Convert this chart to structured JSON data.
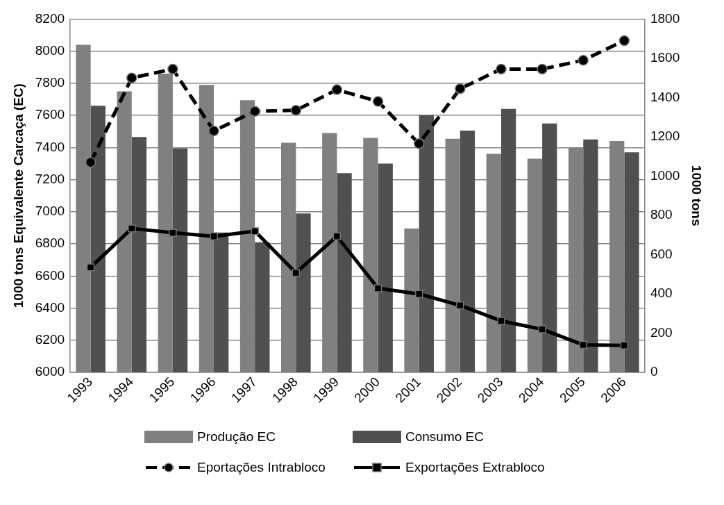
{
  "chart_data": {
    "type": "bar",
    "ylabel": "1000 tons Equivalente Carcaça (EC)",
    "y2label": "1000 tons",
    "categories": [
      "1993",
      "1994",
      "1995",
      "1996",
      "1997",
      "1998",
      "1999",
      "2000",
      "2001",
      "2002",
      "2003",
      "2004",
      "2005",
      "2006"
    ],
    "series": [
      {
        "name": "Produção EC",
        "color": "#808080",
        "values": [
          8040,
          7750,
          7860,
          7790,
          7695,
          7430,
          7490,
          7460,
          6895,
          7455,
          7360,
          7330,
          7400,
          7440
        ]
      },
      {
        "name": "Consumo EC",
        "color": "#505050",
        "values": [
          7660,
          7465,
          7395,
          6870,
          6810,
          6990,
          7240,
          7300,
          7600,
          7505,
          7640,
          7550,
          7450,
          7370
        ]
      },
      {
        "name": "Eportações Intrabloco",
        "type": "line",
        "axis": "y2",
        "color": "#000000",
        "marker": "circle",
        "line_style": "dashed",
        "values": [
          1070,
          1500,
          1545,
          1230,
          1330,
          1335,
          1440,
          1380,
          1165,
          1445,
          1545,
          1545,
          1590,
          1690
        ]
      },
      {
        "name": "Exportações Extrabloco",
        "type": "line",
        "axis": "y2",
        "color": "#000000",
        "marker": "square",
        "line_style": "solid",
        "values": [
          535,
          733,
          711,
          693,
          719,
          507,
          693,
          428,
          399,
          341,
          262,
          219,
          140,
          137
        ]
      }
    ],
    "ylim": [
      6000,
      8200
    ],
    "yticks": [
      6000,
      6200,
      6400,
      6600,
      6800,
      7000,
      7200,
      7400,
      7600,
      7800,
      8000,
      8200
    ],
    "y2lim": [
      0,
      1800
    ],
    "y2ticks": [
      0,
      200,
      400,
      600,
      800,
      1000,
      1200,
      1400,
      1600,
      1800
    ],
    "grid": "y",
    "legend": "bottom"
  }
}
